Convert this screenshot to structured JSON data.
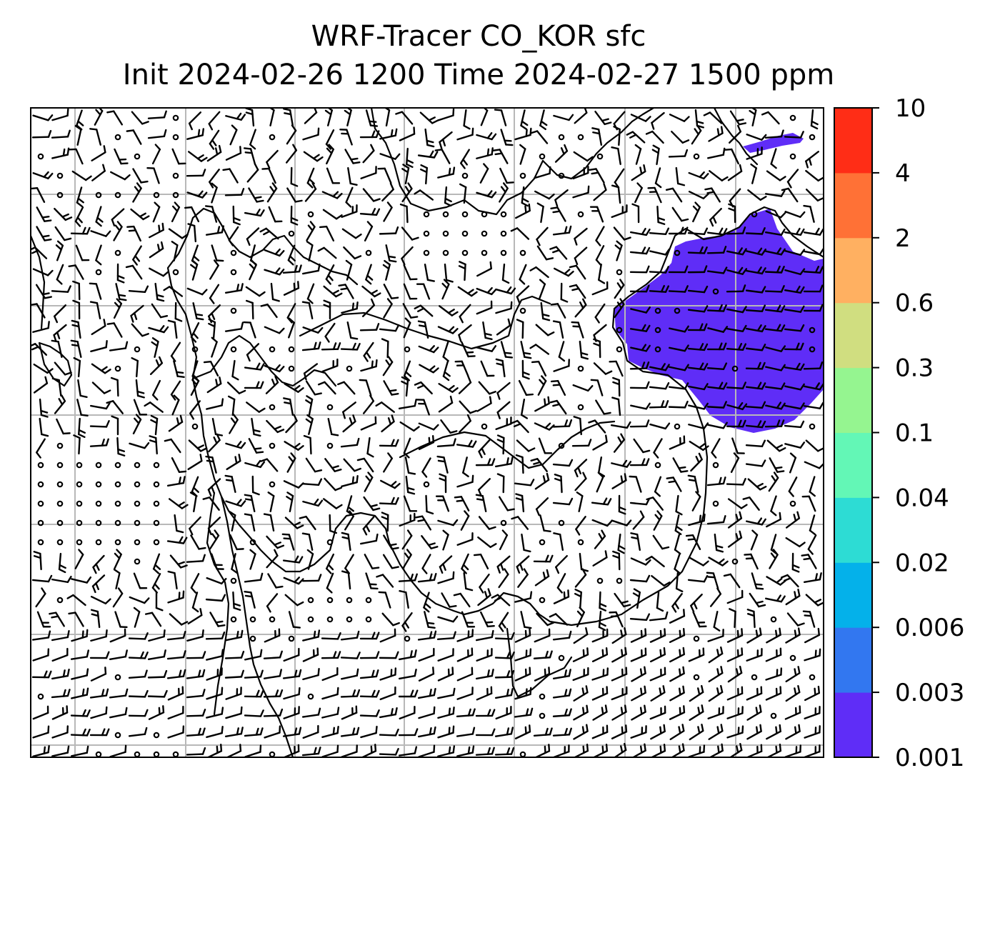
{
  "figure": {
    "title_line1": "WRF-Tracer CO_KOR sfc",
    "title_line2": "Init 2024-02-26 1200 Time 2024-02-27 1500 ppm"
  },
  "colorbar": {
    "levels": [
      "0.001",
      "0.003",
      "0.006",
      "0.02",
      "0.04",
      "0.1",
      "0.3",
      "0.6",
      "2",
      "4",
      "10"
    ],
    "colors": [
      "#5f2df7",
      "#3277f0",
      "#04b1ea",
      "#2ddcd4",
      "#63f7b6",
      "#95f590",
      "#d0de80",
      "#ffb061",
      "#ff7136",
      "#ff2d16"
    ]
  },
  "map": {
    "background": "#ffffff",
    "tracer_color": "#5f2df7",
    "gridlines": "on",
    "overlay": "wind barbs",
    "coastline_color": "#000000"
  }
}
